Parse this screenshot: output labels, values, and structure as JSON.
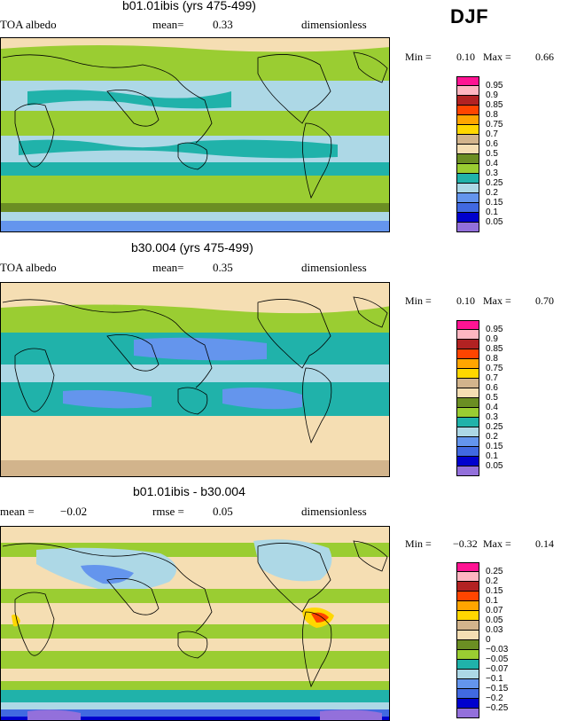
{
  "season": "DJF",
  "panels": [
    {
      "title": "b01.01ibis (yrs 475-499)",
      "left_label": "TOA albedo",
      "mid_label": "mean=",
      "mid_value": "0.33",
      "right_label": "dimensionless",
      "min_label": "Min =",
      "min_value": "0.10",
      "max_label": "Max =",
      "max_value": "0.66",
      "legend": [
        "0.95",
        "0.9",
        "0.85",
        "0.8",
        "0.75",
        "0.7",
        "0.6",
        "0.5",
        "0.4",
        "0.3",
        "0.25",
        "0.2",
        "0.15",
        "0.1",
        "0.05"
      ]
    },
    {
      "title": "b30.004 (yrs 475-499)",
      "left_label": "TOA albedo",
      "mid_label": "mean=",
      "mid_value": "0.35",
      "right_label": "dimensionless",
      "min_label": "Min =",
      "min_value": "0.10",
      "max_label": "Max =",
      "max_value": "0.70",
      "legend": [
        "0.95",
        "0.9",
        "0.85",
        "0.8",
        "0.75",
        "0.7",
        "0.6",
        "0.5",
        "0.4",
        "0.3",
        "0.25",
        "0.2",
        "0.15",
        "0.1",
        "0.05"
      ]
    },
    {
      "title": "b01.01ibis - b30.004",
      "left_label": "mean =",
      "left_value": "−0.02",
      "mid_label": "rmse =",
      "mid_value": "0.05",
      "right_label": "dimensionless",
      "min_label": "Min =",
      "min_value": "−0.32",
      "max_label": "Max =",
      "max_value": "0.14",
      "legend": [
        "0.25",
        "0.2",
        "0.15",
        "0.1",
        "0.07",
        "0.05",
        "0.03",
        "0",
        "−0.03",
        "−0.05",
        "−0.07",
        "−0.1",
        "−0.15",
        "−0.2",
        "−0.25"
      ]
    }
  ],
  "colors": {
    "scale": [
      "#ff1493",
      "#ffb6c1",
      "#b22222",
      "#ff4500",
      "#ffa500",
      "#ffd700",
      "#d2b48c",
      "#f5deb3",
      "#6b8e23",
      "#9acd32",
      "#20b2aa",
      "#add8e6",
      "#6495ed",
      "#4169e1",
      "#0000cd",
      "#9370db"
    ]
  }
}
